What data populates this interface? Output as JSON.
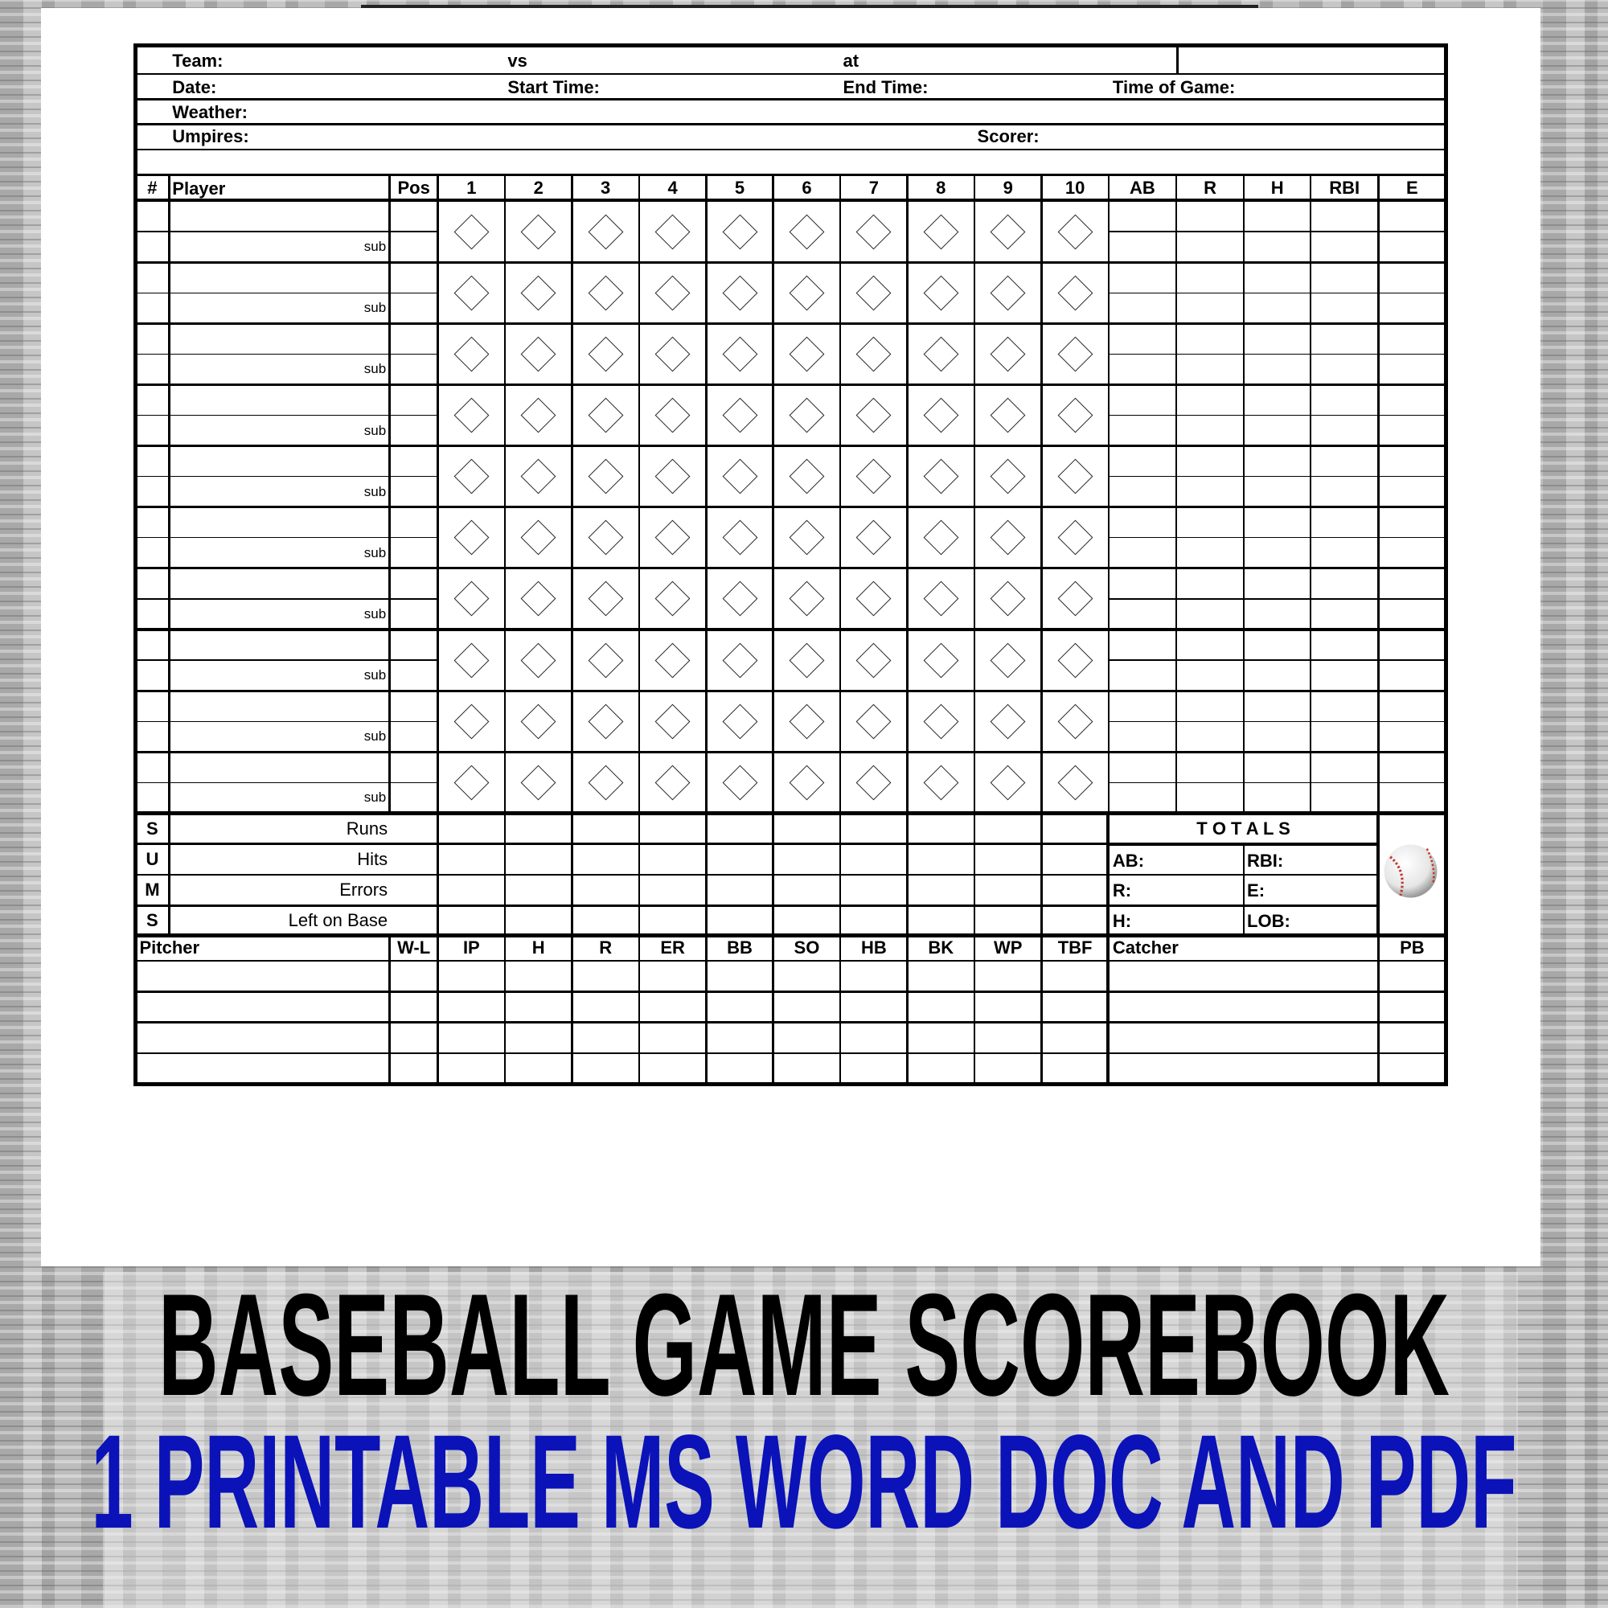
{
  "colors": {
    "title_line1": "#000000",
    "title_line2": "#0a12b8",
    "background": "#b8b8b8"
  },
  "header": {
    "team": "Team:",
    "vs": "vs",
    "at": "at",
    "date": "Date:",
    "start_time": "Start Time:",
    "end_time": "End Time:",
    "time_of_game": "Time of Game:",
    "weather": "Weather:",
    "umpires": "Umpires:",
    "scorer": "Scorer:"
  },
  "lineup": {
    "columns": {
      "number": "#",
      "player": "Player",
      "pos": "Pos"
    },
    "innings": [
      "1",
      "2",
      "3",
      "4",
      "5",
      "6",
      "7",
      "8",
      "9",
      "10"
    ],
    "stats": [
      "AB",
      "R",
      "H",
      "RBI",
      "E"
    ],
    "sub_label": "sub",
    "row_count": 10
  },
  "sums": {
    "letters": [
      "S",
      "U",
      "M",
      "S"
    ],
    "labels": [
      "Runs",
      "Hits",
      "Errors",
      "Left on Base"
    ]
  },
  "totals": {
    "title": "T O T A L S",
    "cells": [
      [
        "AB:",
        "RBI:"
      ],
      [
        "R:",
        "E:"
      ],
      [
        "H:",
        "LOB:"
      ]
    ],
    "icon": "baseball-icon"
  },
  "pitching": {
    "pitcher": "Pitcher",
    "wl": "W-L",
    "columns": [
      "IP",
      "H",
      "R",
      "ER",
      "BB",
      "SO",
      "HB",
      "BK",
      "WP",
      "TBF"
    ],
    "catcher": "Catcher",
    "pb": "PB",
    "row_count": 4
  },
  "title": {
    "line1": "BASEBALL GAME SCOREBOOK",
    "line2": "1 PRINTABLE MS WORD DOC AND PDF"
  }
}
